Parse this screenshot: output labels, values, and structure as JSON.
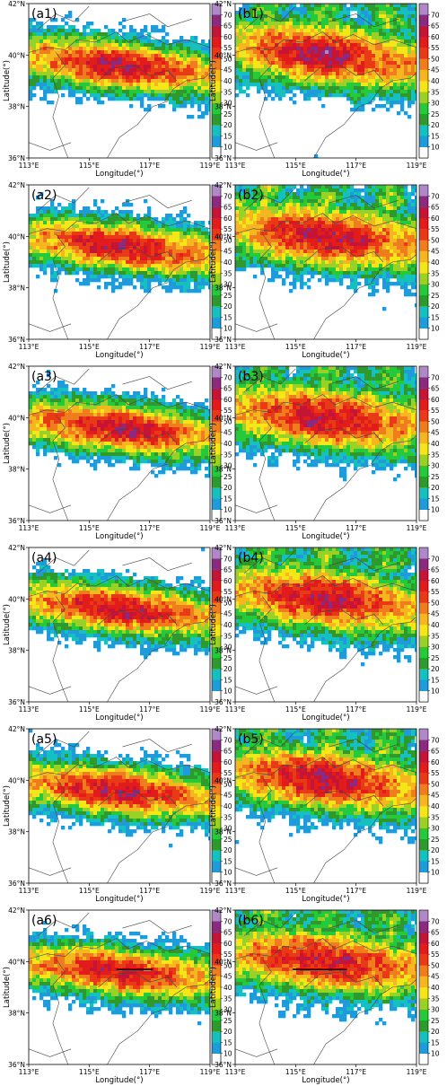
{
  "axes": {
    "xlabel": "Longitude(°)",
    "ylabel": "Latitude(°)",
    "xticks": [
      "113°E",
      "115°E",
      "117°E",
      "119°E"
    ],
    "yticks": [
      "42°N",
      "40°N",
      "38°N",
      "36°N"
    ],
    "xlim": [
      113,
      119
    ],
    "ylim": [
      36,
      42
    ]
  },
  "colorbar": {
    "labels": [
      "10",
      "15",
      "20",
      "25",
      "30",
      "35",
      "40",
      "45",
      "50",
      "55",
      "60",
      "65",
      "70"
    ],
    "bounds": [
      5,
      10,
      15,
      20,
      25,
      30,
      35,
      40,
      45,
      50,
      55,
      60,
      65,
      70,
      75
    ],
    "colors": [
      "#ffffff",
      "#1e9bd8",
      "#16c0c0",
      "#2e9a2e",
      "#25c93a",
      "#9ad126",
      "#f5e61a",
      "#f6b620",
      "#ef7d1e",
      "#e83a16",
      "#e21b1b",
      "#c41537",
      "#8c2a7f",
      "#b088c8"
    ]
  },
  "panels": [
    {
      "label": "(a1)",
      "style": "a",
      "seed": 11
    },
    {
      "label": "(b1)",
      "style": "b",
      "seed": 21
    },
    {
      "label": "(a2)",
      "style": "a",
      "seed": 12
    },
    {
      "label": "(b2)",
      "style": "b",
      "seed": 22
    },
    {
      "label": "(a3)",
      "style": "a",
      "seed": 13
    },
    {
      "label": "(b3)",
      "style": "b",
      "seed": 23
    },
    {
      "label": "(a4)",
      "style": "a",
      "seed": 14
    },
    {
      "label": "(b4)",
      "style": "b",
      "seed": 24
    },
    {
      "label": "(a5)",
      "style": "a",
      "seed": 15
    },
    {
      "label": "(b5)",
      "style": "b",
      "seed": 25
    },
    {
      "label": "(a6)",
      "style": "a",
      "seed": 16,
      "transect": [
        115.9,
        117.1,
        39.7
      ]
    },
    {
      "label": "(b6)",
      "style": "b",
      "seed": 26,
      "transect": [
        114.9,
        116.7,
        39.7
      ]
    }
  ]
}
